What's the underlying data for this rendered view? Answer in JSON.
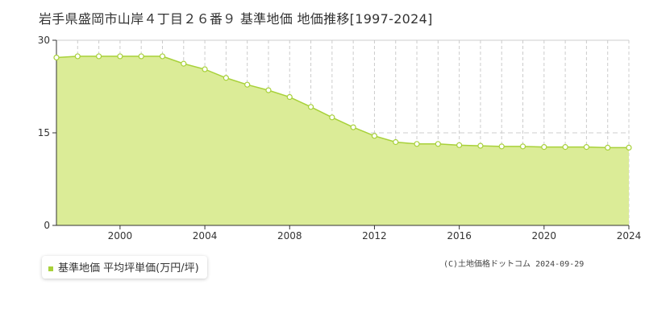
{
  "header": {
    "title": "岩手県盛岡市山岸４丁目２６番９ 基準地価 地価推移[1997-2024]"
  },
  "legend": {
    "label": "基準地価 平均坪単価(万円/坪)"
  },
  "footer": {
    "credit": "(C)土地価格ドットコム 2024-09-29"
  },
  "colors": {
    "area_fill": "#dbec97",
    "line": "#a8d13a",
    "marker_fill": "#ffffff",
    "grid_solid": "#cccccc",
    "grid_dashed": "#cccccc",
    "axis": "#333333"
  },
  "chart_data": {
    "type": "area",
    "title": "岩手県盛岡市山岸４丁目２６番９ 基準地価 地価推移[1997-2024]",
    "xlabel": "",
    "ylabel": "",
    "xlim": [
      1997,
      2024
    ],
    "ylim": [
      0,
      30
    ],
    "y_ticks": [
      0,
      15,
      30
    ],
    "x_tick_labels": [
      "2000",
      "2004",
      "2008",
      "2012",
      "2016",
      "2020",
      "2024"
    ],
    "grid": true,
    "legend_position": "bottom-left",
    "series": [
      {
        "name": "基準地価 平均坪単価(万円/坪)",
        "x": [
          1997,
          1998,
          1999,
          2000,
          2001,
          2002,
          2003,
          2004,
          2005,
          2006,
          2007,
          2008,
          2009,
          2010,
          2011,
          2012,
          2013,
          2014,
          2015,
          2016,
          2017,
          2018,
          2019,
          2020,
          2021,
          2022,
          2023,
          2024
        ],
        "values": [
          27.2,
          27.4,
          27.4,
          27.4,
          27.4,
          27.4,
          26.2,
          25.3,
          23.9,
          22.8,
          21.9,
          20.8,
          19.2,
          17.5,
          15.9,
          14.5,
          13.5,
          13.2,
          13.2,
          13.0,
          12.9,
          12.8,
          12.8,
          12.7,
          12.7,
          12.7,
          12.6,
          12.6
        ]
      }
    ]
  }
}
